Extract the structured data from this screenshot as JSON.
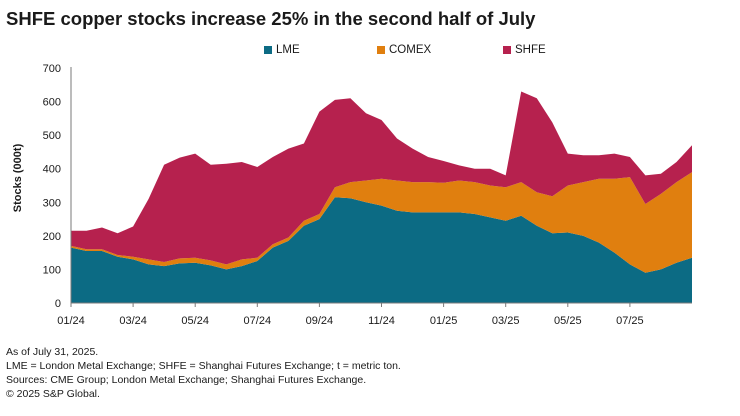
{
  "colors": {
    "LME": "#0c6b84",
    "COMEX": "#e07f0f",
    "SHFE": "#b6214e",
    "axis": "#7a7a7a"
  },
  "chart_data": {
    "type": "area",
    "stacked": true,
    "title": "SHFE copper stocks increase 25% in the second half of July",
    "xlabel": "",
    "ylabel": "Stocks (000t)",
    "ylim": [
      0,
      700
    ],
    "yticks": [
      0,
      100,
      200,
      300,
      400,
      500,
      600,
      700
    ],
    "xticks": [
      "01/24",
      "03/24",
      "05/24",
      "07/24",
      "09/24",
      "11/24",
      "01/25",
      "03/25",
      "05/25",
      "07/25"
    ],
    "legend_position": "top",
    "x": [
      0,
      0.5,
      1,
      1.5,
      2,
      2.5,
      3,
      3.5,
      4,
      4.5,
      5,
      5.5,
      6,
      6.5,
      7,
      7.5,
      8,
      8.5,
      9,
      9.5,
      10,
      10.5,
      11,
      11.5,
      12,
      12.5,
      13,
      13.5,
      14,
      14.5,
      15,
      15.5,
      16,
      16.5,
      17,
      17.5,
      18,
      18.5,
      19,
      19.5,
      20
    ],
    "series": [
      {
        "name": "LME",
        "values": [
          165,
          155,
          155,
          138,
          130,
          115,
          110,
          118,
          120,
          112,
          100,
          110,
          125,
          165,
          185,
          230,
          250,
          315,
          312,
          300,
          290,
          275,
          270,
          270,
          270,
          270,
          265,
          255,
          245,
          260,
          230,
          208,
          210,
          200,
          180,
          150,
          115,
          90,
          100,
          120,
          135
        ]
      },
      {
        "name": "COMEX",
        "values": [
          5,
          5,
          5,
          5,
          8,
          15,
          12,
          15,
          15,
          15,
          15,
          20,
          10,
          10,
          10,
          15,
          15,
          30,
          48,
          65,
          80,
          90,
          90,
          90,
          88,
          95,
          95,
          95,
          100,
          100,
          100,
          110,
          140,
          160,
          190,
          220,
          260,
          205,
          225,
          240,
          255
        ]
      },
      {
        "name": "SHFE",
        "values": [
          45,
          55,
          65,
          65,
          90,
          180,
          290,
          300,
          310,
          285,
          300,
          290,
          270,
          260,
          265,
          230,
          305,
          260,
          250,
          200,
          175,
          125,
          100,
          75,
          65,
          45,
          40,
          50,
          35,
          270,
          280,
          220,
          95,
          80,
          70,
          75,
          60,
          85,
          60,
          60,
          80
        ]
      }
    ]
  },
  "notes": {
    "line1": "As of July 31, 2025.",
    "line2": "LME = London Metal Exchange; SHFE = Shanghai Futures Exchange; t = metric ton.",
    "line3": "Sources: CME Group; London Metal Exchange; Shanghai Futures Exchange.",
    "line4": "© 2025 S&P Global."
  }
}
